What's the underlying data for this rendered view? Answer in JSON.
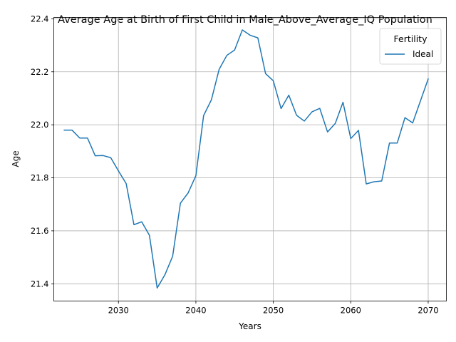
{
  "chart_data": {
    "type": "line",
    "title": "Average Age at Birth of First Child in Male_Above_Average_IQ Population",
    "xlabel": "Years",
    "ylabel": "Age",
    "xlim": [
      2021.65,
      2072.35
    ],
    "ylim": [
      21.335,
      22.405
    ],
    "x_ticks": [
      2030,
      2040,
      2050,
      2060,
      2070
    ],
    "y_ticks": [
      21.4,
      21.6,
      21.8,
      22.0,
      22.2,
      22.4
    ],
    "grid": true,
    "legend": {
      "title": "Fertility",
      "placement": "top-right"
    },
    "series": [
      {
        "name": "Ideal",
        "color": "#1f77b4",
        "x": [
          2023,
          2024,
          2025,
          2026,
          2027,
          2028,
          2029,
          2030,
          2031,
          2032,
          2033,
          2034,
          2035,
          2036,
          2037,
          2038,
          2039,
          2040,
          2041,
          2042,
          2043,
          2044,
          2045,
          2046,
          2047,
          2048,
          2049,
          2050,
          2051,
          2052,
          2053,
          2054,
          2055,
          2056,
          2057,
          2058,
          2059,
          2060,
          2061,
          2062,
          2063,
          2064,
          2065,
          2066,
          2067,
          2068,
          2069,
          2070
        ],
        "values": [
          21.98,
          21.98,
          21.95,
          21.95,
          21.883,
          21.884,
          21.876,
          21.826,
          21.778,
          21.623,
          21.634,
          21.583,
          21.384,
          21.434,
          21.504,
          21.704,
          21.743,
          21.808,
          22.035,
          22.094,
          22.209,
          22.262,
          22.282,
          22.358,
          22.338,
          22.328,
          22.193,
          22.166,
          22.061,
          22.112,
          22.036,
          22.014,
          22.049,
          22.062,
          21.973,
          22.005,
          22.085,
          21.948,
          21.979,
          21.777,
          21.785,
          21.788,
          21.931,
          21.931,
          22.027,
          22.007,
          22.09,
          22.173
        ]
      }
    ]
  }
}
